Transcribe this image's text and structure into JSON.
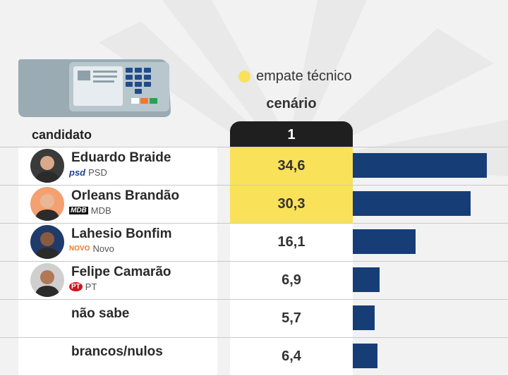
{
  "legend": {
    "label": "empate técnico",
    "color": "#f9e15a"
  },
  "column_header": "cenário",
  "scenario_label": "1",
  "candidate_header": "candidato",
  "colors": {
    "bar": "#173d77",
    "tie": "#f9e15a",
    "tab": "#1f1f1f"
  },
  "chart_data": {
    "type": "bar",
    "orientation": "horizontal",
    "title": "",
    "xlabel": "",
    "ylabel": "",
    "categories": [
      "Eduardo Braide",
      "Orleans Brandão",
      "Lahesio Bonfim",
      "Felipe Camarão",
      "não sabe",
      "brancos/nulos"
    ],
    "series": [
      {
        "values": [
          34.6,
          30.3,
          16.1,
          6.9,
          5.7,
          6.4
        ]
      }
    ],
    "value_labels": [
      "34,6",
      "30,3",
      "16,1",
      "6,9",
      "5,7",
      "6,4"
    ],
    "tie": [
      true,
      true,
      false,
      false,
      false,
      false
    ],
    "xlim": [
      0,
      40
    ]
  },
  "candidates": [
    {
      "name": "Eduardo Braide",
      "party": "PSD",
      "party_logo": "psd",
      "photo": true
    },
    {
      "name": "Orleans Brandão",
      "party": "MDB",
      "party_logo": "MDB",
      "photo": true
    },
    {
      "name": "Lahesio Bonfim",
      "party": "Novo",
      "party_logo": "NOVO",
      "photo": true
    },
    {
      "name": "Felipe Camarão",
      "party": "PT",
      "party_logo": "PT",
      "photo": true
    },
    {
      "name": "não sabe",
      "party": "",
      "party_logo": "",
      "photo": false
    },
    {
      "name": "brancos/nulos",
      "party": "",
      "party_logo": "",
      "photo": false
    }
  ]
}
